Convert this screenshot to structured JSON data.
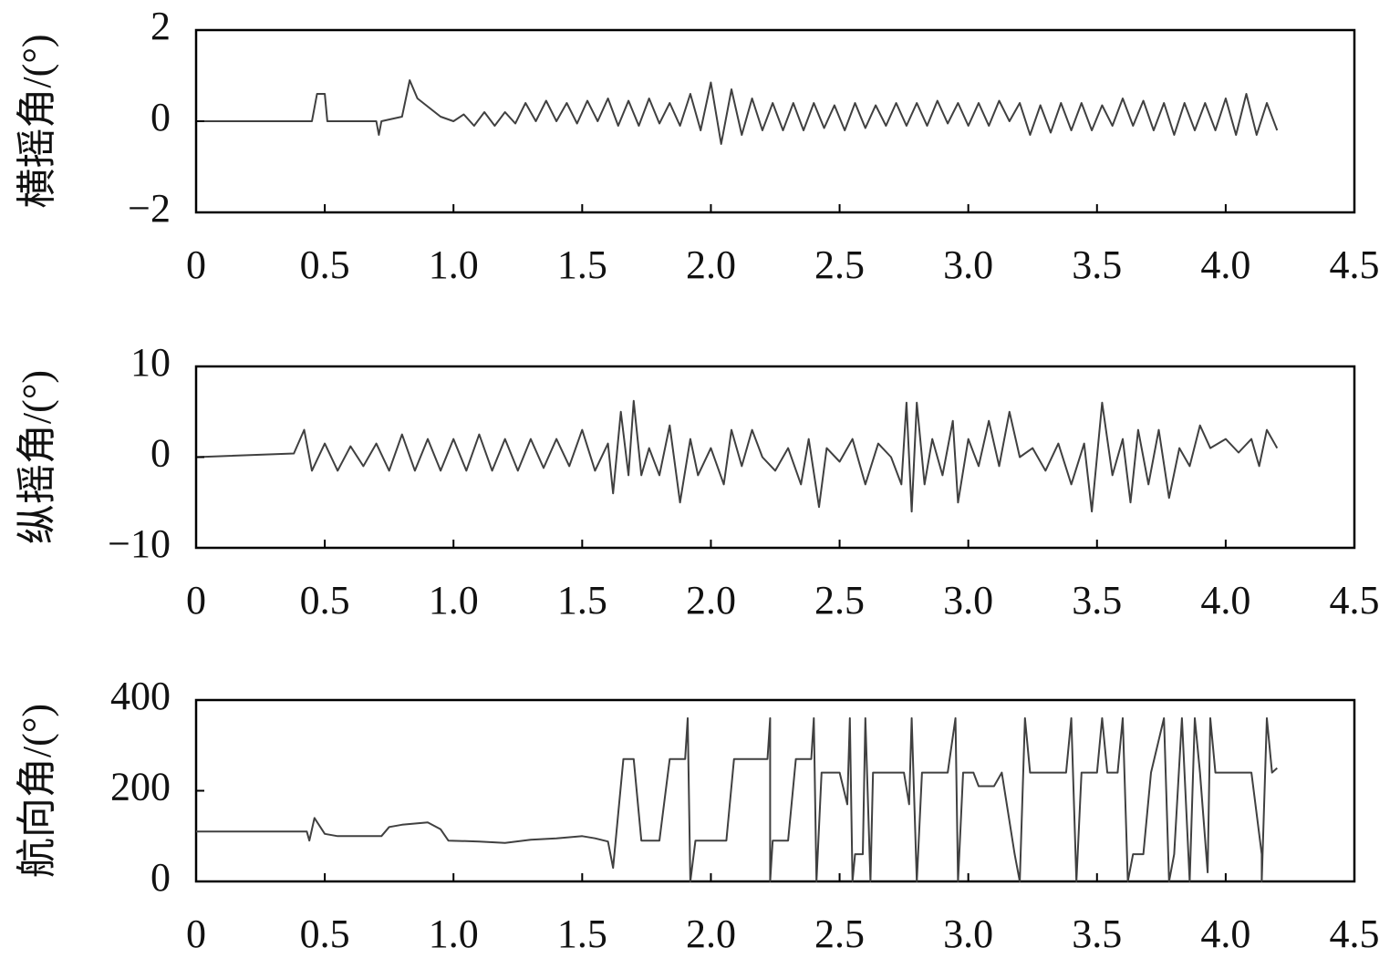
{
  "chart_data": [
    {
      "type": "line",
      "ylabel": "横摇角/(°)",
      "color": "#404040",
      "xlim": [
        0,
        4.5
      ],
      "ylim": [
        -2,
        2
      ],
      "xticks": [
        0,
        0.5,
        {
          "value": 1,
          "label": "1.0"
        },
        1.5,
        {
          "value": 2,
          "label": "2.0"
        },
        2.5,
        {
          "value": 3,
          "label": "3.0"
        },
        3.5,
        {
          "value": 4,
          "label": "4.0"
        },
        4.5
      ],
      "yticks": [
        {
          "value": -2,
          "label": "−2"
        },
        0,
        2
      ],
      "x": [
        0,
        0.45,
        0.47,
        0.5,
        0.51,
        0.7,
        0.71,
        0.72,
        0.8,
        0.83,
        0.86,
        0.95,
        1.0,
        1.04,
        1.08,
        1.12,
        1.16,
        1.2,
        1.24,
        1.28,
        1.32,
        1.36,
        1.4,
        1.44,
        1.48,
        1.52,
        1.56,
        1.6,
        1.64,
        1.68,
        1.72,
        1.76,
        1.8,
        1.84,
        1.88,
        1.92,
        1.96,
        2.0,
        2.04,
        2.08,
        2.12,
        2.16,
        2.2,
        2.24,
        2.28,
        2.32,
        2.36,
        2.4,
        2.44,
        2.48,
        2.52,
        2.56,
        2.6,
        2.64,
        2.68,
        2.72,
        2.76,
        2.8,
        2.84,
        2.88,
        2.92,
        2.96,
        3.0,
        3.04,
        3.08,
        3.12,
        3.16,
        3.2,
        3.24,
        3.28,
        3.32,
        3.36,
        3.4,
        3.44,
        3.48,
        3.52,
        3.56,
        3.6,
        3.64,
        3.68,
        3.72,
        3.76,
        3.8,
        3.84,
        3.88,
        3.92,
        3.96,
        4.0,
        4.04,
        4.08,
        4.12,
        4.16,
        4.2
      ],
      "values": [
        0,
        0,
        0.6,
        0.6,
        0,
        0,
        -0.3,
        0,
        0.1,
        0.9,
        0.5,
        0.1,
        0,
        0.15,
        -0.1,
        0.2,
        -0.1,
        0.2,
        -0.05,
        0.4,
        0,
        0.45,
        0,
        0.4,
        -0.05,
        0.45,
        0,
        0.5,
        -0.1,
        0.45,
        -0.1,
        0.5,
        -0.05,
        0.4,
        -0.1,
        0.6,
        -0.2,
        0.85,
        -0.5,
        0.7,
        -0.3,
        0.5,
        -0.2,
        0.4,
        -0.2,
        0.4,
        -0.2,
        0.4,
        -0.15,
        0.35,
        -0.2,
        0.4,
        -0.15,
        0.35,
        -0.1,
        0.4,
        -0.1,
        0.4,
        -0.1,
        0.45,
        -0.05,
        0.4,
        -0.1,
        0.4,
        -0.1,
        0.45,
        0,
        0.4,
        -0.3,
        0.35,
        -0.25,
        0.4,
        -0.2,
        0.4,
        -0.2,
        0.35,
        -0.1,
        0.5,
        -0.1,
        0.45,
        -0.2,
        0.4,
        -0.3,
        0.4,
        -0.2,
        0.4,
        -0.2,
        0.5,
        -0.3,
        0.6,
        -0.3,
        0.4,
        -0.2
      ]
    },
    {
      "type": "line",
      "ylabel": "纵摇角/(°)",
      "color": "#404040",
      "xlim": [
        0,
        4.5
      ],
      "ylim": [
        -10,
        10
      ],
      "xticks": [
        0,
        0.5,
        {
          "value": 1,
          "label": "1.0"
        },
        1.5,
        {
          "value": 2,
          "label": "2.0"
        },
        2.5,
        {
          "value": 3,
          "label": "3.0"
        },
        3.5,
        {
          "value": 4,
          "label": "4.0"
        },
        4.5
      ],
      "yticks": [
        {
          "value": -10,
          "label": "−10"
        },
        0,
        10
      ],
      "x": [
        0,
        0.38,
        0.42,
        0.45,
        0.5,
        0.55,
        0.6,
        0.65,
        0.7,
        0.75,
        0.8,
        0.85,
        0.9,
        0.95,
        1.0,
        1.05,
        1.1,
        1.15,
        1.2,
        1.25,
        1.3,
        1.35,
        1.4,
        1.45,
        1.5,
        1.55,
        1.6,
        1.62,
        1.65,
        1.68,
        1.7,
        1.73,
        1.76,
        1.8,
        1.84,
        1.88,
        1.92,
        1.95,
        2.0,
        2.05,
        2.08,
        2.12,
        2.16,
        2.2,
        2.25,
        2.3,
        2.35,
        2.38,
        2.42,
        2.45,
        2.5,
        2.55,
        2.6,
        2.65,
        2.7,
        2.74,
        2.76,
        2.78,
        2.8,
        2.83,
        2.86,
        2.9,
        2.94,
        2.96,
        3.0,
        3.04,
        3.08,
        3.12,
        3.16,
        3.2,
        3.25,
        3.3,
        3.35,
        3.4,
        3.45,
        3.48,
        3.52,
        3.56,
        3.6,
        3.63,
        3.66,
        3.7,
        3.74,
        3.78,
        3.82,
        3.86,
        3.9,
        3.94,
        4.0,
        4.05,
        4.1,
        4.13,
        4.16,
        4.2
      ],
      "values": [
        0,
        0.4,
        3,
        -1.5,
        1.5,
        -1.5,
        1.2,
        -1,
        1.5,
        -1.5,
        2.5,
        -1.5,
        2,
        -1.5,
        2,
        -1.5,
        2.5,
        -1.5,
        2,
        -1.5,
        2,
        -1.2,
        2,
        -1,
        3,
        -1.5,
        1.5,
        -4,
        5,
        -2,
        6.2,
        -2,
        1,
        -2,
        3.5,
        -5,
        2,
        -2,
        1,
        -3,
        3,
        -1,
        3,
        0,
        -1.5,
        1,
        -3,
        2,
        -5.5,
        1,
        -0.5,
        2,
        -3,
        1.5,
        0,
        -3,
        6,
        -6,
        6,
        -3,
        2,
        -2,
        4,
        -5,
        2,
        -1,
        4,
        -1,
        5,
        0,
        1,
        -1.5,
        1.5,
        -3,
        1.5,
        -6,
        6,
        -2,
        2,
        -5,
        3,
        -3,
        3,
        -4.5,
        1,
        -1,
        3.5,
        1,
        2,
        0.5,
        2,
        -1,
        3,
        1
      ]
    },
    {
      "type": "line",
      "ylabel": "航向角/(°)",
      "color": "#404040",
      "xlim": [
        0,
        4.5
      ],
      "ylim": [
        0,
        400
      ],
      "xticks": [
        0,
        0.5,
        {
          "value": 1,
          "label": "1.0"
        },
        1.5,
        {
          "value": 2,
          "label": "2.0"
        },
        2.5,
        {
          "value": 3,
          "label": "3.0"
        },
        3.5,
        {
          "value": 4,
          "label": "4.0"
        },
        4.5
      ],
      "yticks": [
        0,
        200,
        400
      ],
      "x": [
        0,
        0.43,
        0.44,
        0.46,
        0.5,
        0.55,
        0.72,
        0.75,
        0.8,
        0.9,
        0.95,
        0.98,
        1.1,
        1.2,
        1.3,
        1.4,
        1.5,
        1.55,
        1.6,
        1.62,
        1.66,
        1.7,
        1.73,
        1.8,
        1.84,
        1.9,
        1.91,
        1.92,
        1.94,
        2.06,
        2.09,
        2.22,
        2.23,
        2.23,
        2.24,
        2.3,
        2.33,
        2.39,
        2.4,
        2.41,
        2.43,
        2.5,
        2.53,
        2.54,
        2.55,
        2.56,
        2.59,
        2.6,
        2.62,
        2.63,
        2.75,
        2.77,
        2.78,
        2.8,
        2.82,
        2.92,
        2.95,
        2.96,
        2.98,
        3.02,
        3.04,
        3.1,
        3.13,
        3.18,
        3.2,
        3.22,
        3.24,
        3.38,
        3.4,
        3.42,
        3.44,
        3.5,
        3.52,
        3.54,
        3.58,
        3.6,
        3.62,
        3.64,
        3.68,
        3.71,
        3.76,
        3.78,
        3.8,
        3.83,
        3.86,
        3.88,
        3.9,
        3.93,
        3.94,
        3.96,
        4.1,
        4.14,
        4.14,
        4.16,
        4.18,
        4.2
      ],
      "values": [
        110,
        110,
        90,
        140,
        105,
        100,
        100,
        120,
        125,
        130,
        115,
        90,
        88,
        85,
        92,
        95,
        100,
        95,
        88,
        30,
        270,
        270,
        90,
        90,
        270,
        270,
        360,
        0,
        90,
        90,
        270,
        270,
        360,
        0,
        90,
        90,
        270,
        270,
        360,
        0,
        240,
        240,
        170,
        360,
        0,
        60,
        60,
        360,
        0,
        240,
        240,
        170,
        360,
        0,
        240,
        240,
        360,
        0,
        240,
        240,
        210,
        210,
        240,
        60,
        0,
        360,
        240,
        240,
        360,
        0,
        240,
        240,
        360,
        240,
        240,
        360,
        0,
        60,
        60,
        240,
        360,
        0,
        60,
        360,
        0,
        360,
        240,
        20,
        360,
        240,
        240,
        60,
        0,
        360,
        240,
        250
      ]
    }
  ]
}
